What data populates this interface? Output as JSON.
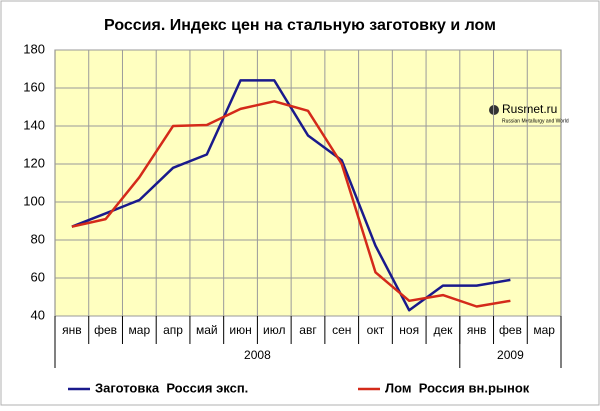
{
  "chart_data": {
    "type": "line",
    "title": "Россия. Индекс цен  на стальную заготовку и лом",
    "categories": [
      "янв",
      "фев",
      "мар",
      "апр",
      "май",
      "июн",
      "июл",
      "авг",
      "сен",
      "окт",
      "ноя",
      "дек",
      "янв",
      "фев",
      "мар"
    ],
    "x_groups": [
      {
        "label": "2008",
        "count": 12
      },
      {
        "label": "2009",
        "count": 3
      }
    ],
    "series": [
      {
        "name": "Заготовка  Россия эксп.",
        "color": "#1a1a8c",
        "values": [
          87,
          94,
          101,
          118,
          125,
          164,
          164,
          135,
          122,
          77,
          43,
          56,
          56,
          59,
          null
        ]
      },
      {
        "name": "Лом  Россия вн.рынок",
        "color": "#d42a1a",
        "values": [
          87,
          91,
          113,
          140,
          140.5,
          149,
          153,
          148,
          120,
          63,
          48,
          51,
          45,
          48,
          null
        ]
      }
    ],
    "ylim": [
      40,
      180
    ],
    "yticks": [
      40,
      60,
      80,
      100,
      120,
      140,
      160,
      180
    ],
    "grid": true,
    "watermark": "Rusmet.ru",
    "watermark_sub": "Russian Metallurgy and World"
  }
}
